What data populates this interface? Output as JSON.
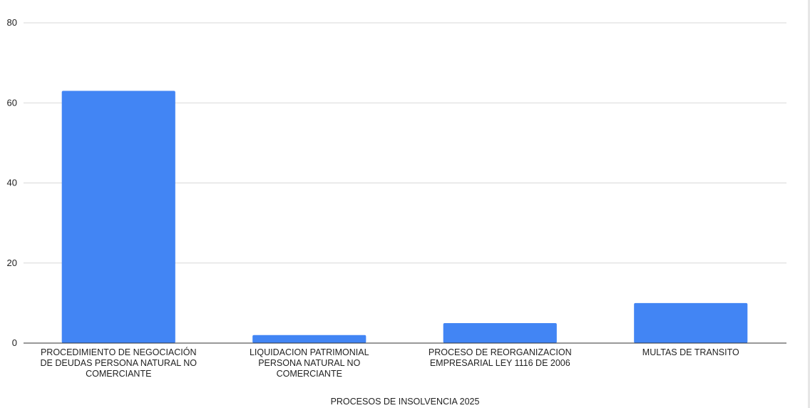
{
  "chart_data": {
    "type": "bar",
    "title": "",
    "xlabel": "PROCESOS DE INSOLVENCIA 2025",
    "ylabel": "",
    "ylim": [
      0,
      80
    ],
    "yticks": [
      0,
      20,
      40,
      60,
      80
    ],
    "grid": true,
    "categories": [
      [
        "PROCEDIMIENTO DE NEGOCIACIÓN",
        "DE DEUDAS PERSONA NATURAL NO",
        "COMERCIANTE"
      ],
      [
        "LIQUIDACION PATRIMONIAL",
        "PERSONA NATURAL NO",
        "COMERCIANTE"
      ],
      [
        "PROCESO DE REORGANIZACION",
        "EMPRESARIAL LEY 1116 DE 2006"
      ],
      [
        "MULTAS DE TRANSITO"
      ]
    ],
    "values": [
      63,
      2,
      5,
      10
    ],
    "bar_color": "#4285f4"
  }
}
